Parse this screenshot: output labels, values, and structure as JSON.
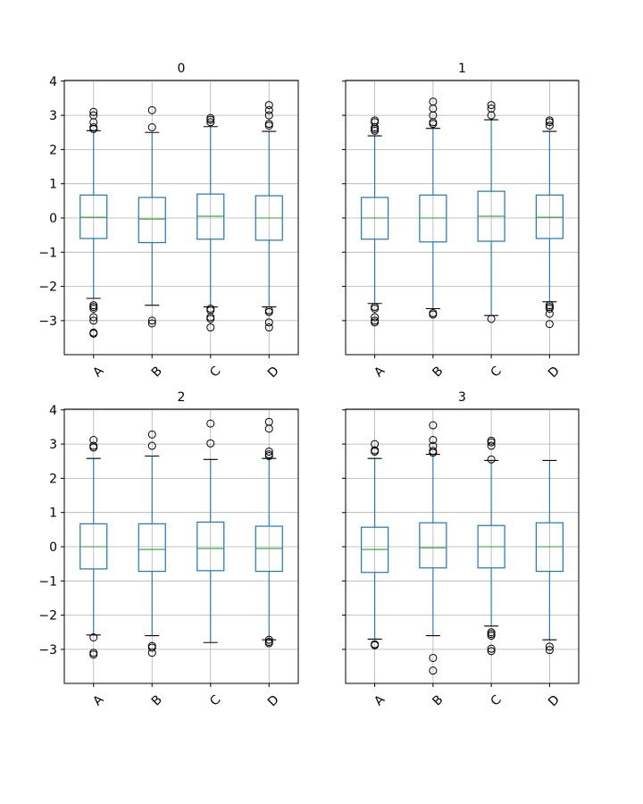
{
  "colors": {
    "box": "#1f77b4",
    "median": "#2ca02c",
    "flier": "#000000",
    "grid": "#b0b0b0"
  },
  "chart_data": [
    {
      "type": "box",
      "title": "0",
      "categories": [
        "A",
        "B",
        "C",
        "D"
      ],
      "ylim": [
        -4,
        4
      ],
      "yticks": [
        -3,
        -2,
        -1,
        0,
        1,
        2,
        3,
        4
      ],
      "ytick_labels": [
        "−3",
        "−2",
        "−1",
        "0",
        "1",
        "2",
        "3",
        "4"
      ],
      "grid": true,
      "boxes": [
        {
          "q1": -0.6,
          "median": 0.02,
          "q3": 0.67,
          "whislo": -2.35,
          "whishi": 2.55,
          "fliers": [
            2.6,
            2.65,
            2.8,
            3.0,
            3.1,
            -2.55,
            -2.6,
            -2.65,
            -2.9,
            -3.0,
            -3.35,
            -3.38
          ]
        },
        {
          "q1": -0.72,
          "median": -0.03,
          "q3": 0.6,
          "whislo": -2.55,
          "whishi": 2.5,
          "fliers": [
            2.65,
            3.15,
            -3.0,
            -3.08
          ]
        },
        {
          "q1": -0.62,
          "median": 0.05,
          "q3": 0.7,
          "whislo": -2.6,
          "whishi": 2.67,
          "fliers": [
            2.8,
            2.87,
            2.92,
            -2.65,
            -2.7,
            -2.9,
            -2.95,
            -3.2
          ]
        },
        {
          "q1": -0.65,
          "median": 0.0,
          "q3": 0.65,
          "whislo": -2.6,
          "whishi": 2.53,
          "fliers": [
            2.7,
            2.75,
            3.0,
            3.15,
            3.3,
            -2.7,
            -2.75,
            -3.05,
            -3.2
          ]
        }
      ]
    },
    {
      "type": "box",
      "title": "1",
      "categories": [
        "A",
        "B",
        "C",
        "D"
      ],
      "ylim": [
        -4,
        4
      ],
      "yticks": [
        -3,
        -2,
        -1,
        0,
        1,
        2,
        3,
        4
      ],
      "ytick_labels": [],
      "grid": true,
      "boxes": [
        {
          "q1": -0.62,
          "median": 0.0,
          "q3": 0.6,
          "whislo": -2.5,
          "whishi": 2.4,
          "fliers": [
            2.55,
            2.6,
            2.65,
            2.8,
            2.85,
            -2.6,
            -2.65,
            -2.9,
            -3.0,
            -3.05
          ]
        },
        {
          "q1": -0.7,
          "median": 0.0,
          "q3": 0.67,
          "whislo": -2.65,
          "whishi": 2.62,
          "fliers": [
            2.75,
            2.8,
            3.0,
            3.2,
            3.4,
            -2.78,
            -2.82
          ]
        },
        {
          "q1": -0.68,
          "median": 0.05,
          "q3": 0.78,
          "whislo": -2.85,
          "whishi": 2.87,
          "fliers": [
            3.0,
            3.2,
            3.3,
            -2.95
          ]
        },
        {
          "q1": -0.6,
          "median": 0.02,
          "q3": 0.67,
          "whislo": -2.45,
          "whishi": 2.53,
          "fliers": [
            2.7,
            2.8,
            2.85,
            -2.55,
            -2.6,
            -2.65,
            -2.8,
            -3.1
          ]
        }
      ]
    },
    {
      "type": "box",
      "title": "2",
      "categories": [
        "A",
        "B",
        "C",
        "D"
      ],
      "ylim": [
        -4,
        4
      ],
      "yticks": [
        -3,
        -2,
        -1,
        0,
        1,
        2,
        3,
        4
      ],
      "ytick_labels": [
        "−3",
        "−2",
        "−1",
        "0",
        "1",
        "2",
        "3",
        "4"
      ],
      "grid": true,
      "boxes": [
        {
          "q1": -0.65,
          "median": 0.0,
          "q3": 0.67,
          "whislo": -2.58,
          "whishi": 2.58,
          "fliers": [
            2.9,
            2.95,
            3.12,
            -2.65,
            -3.1,
            -3.15
          ]
        },
        {
          "q1": -0.72,
          "median": -0.08,
          "q3": 0.67,
          "whislo": -2.6,
          "whishi": 2.65,
          "fliers": [
            2.95,
            3.28,
            -2.9,
            -2.95,
            -3.1
          ]
        },
        {
          "q1": -0.7,
          "median": -0.05,
          "q3": 0.72,
          "whislo": -2.8,
          "whishi": 2.55,
          "fliers": [
            3.02,
            3.6
          ]
        },
        {
          "q1": -0.72,
          "median": -0.05,
          "q3": 0.6,
          "whislo": -2.72,
          "whishi": 2.58,
          "fliers": [
            2.65,
            2.7,
            2.78,
            3.45,
            3.65,
            -2.72,
            -2.78,
            -2.82
          ]
        }
      ]
    },
    {
      "type": "box",
      "title": "3",
      "categories": [
        "A",
        "B",
        "C",
        "D"
      ],
      "ylim": [
        -4,
        4
      ],
      "yticks": [
        -3,
        -2,
        -1,
        0,
        1,
        2,
        3,
        4
      ],
      "ytick_labels": [],
      "grid": true,
      "boxes": [
        {
          "q1": -0.75,
          "median": -0.08,
          "q3": 0.57,
          "whislo": -2.7,
          "whishi": 2.58,
          "fliers": [
            2.78,
            2.82,
            3.0,
            -2.85,
            -2.88
          ]
        },
        {
          "q1": -0.62,
          "median": -0.03,
          "q3": 0.7,
          "whislo": -2.6,
          "whishi": 2.7,
          "fliers": [
            2.75,
            2.8,
            2.95,
            3.12,
            3.55,
            -3.25,
            -3.62
          ]
        },
        {
          "q1": -0.62,
          "median": 0.0,
          "q3": 0.62,
          "whislo": -2.32,
          "whishi": 2.52,
          "fliers": [
            2.55,
            2.95,
            3.05,
            3.1,
            -2.5,
            -2.55,
            -2.6,
            -2.98,
            -3.05
          ]
        },
        {
          "q1": -0.72,
          "median": 0.0,
          "q3": 0.7,
          "whislo": -2.72,
          "whishi": 2.52,
          "fliers": [
            -2.92,
            -3.02
          ]
        }
      ]
    }
  ]
}
